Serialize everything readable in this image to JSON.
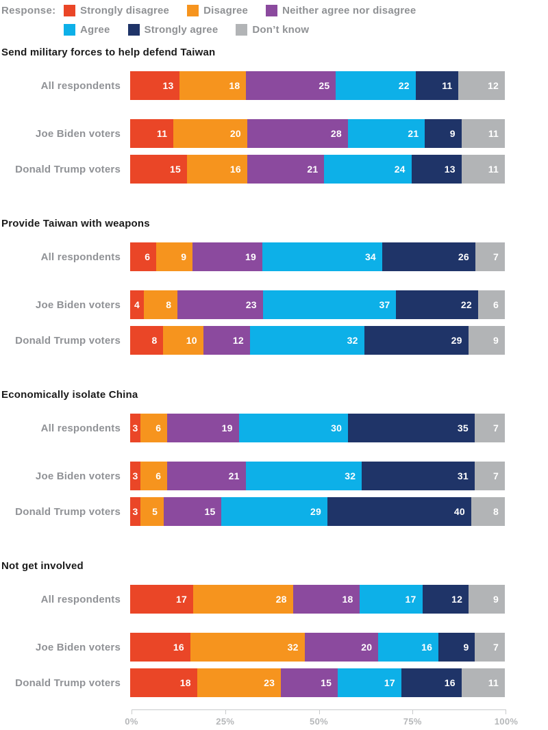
{
  "legend": {
    "prefix": "Response:",
    "items": [
      {
        "label": "Strongly disagree",
        "color": "#EA4627"
      },
      {
        "label": "Disagree",
        "color": "#F6941E"
      },
      {
        "label": "Neither agree nor disagree",
        "color": "#8B4A9E"
      },
      {
        "label": "Agree",
        "color": "#0DB0E8"
      },
      {
        "label": "Strongly agree",
        "color": "#1F3468"
      },
      {
        "label": "Don’t know",
        "color": "#B2B4B6"
      }
    ]
  },
  "chart_data": {
    "type": "bar",
    "variant": "horizontal-stacked",
    "unit": "percent",
    "response_options": [
      "Strongly disagree",
      "Disagree",
      "Neither agree nor disagree",
      "Agree",
      "Strongly agree",
      "Don’t know"
    ],
    "colors": [
      "#EA4627",
      "#F6941E",
      "#8B4A9E",
      "#0DB0E8",
      "#1F3468",
      "#B2B4B6"
    ],
    "categories": [
      "All respondents",
      "Joe Biden voters",
      "Donald Trump voters"
    ],
    "axis": {
      "range": [
        0,
        100
      ],
      "ticks": [
        "0%",
        "25%",
        "50%",
        "75%",
        "100%"
      ]
    },
    "sections": [
      {
        "title": "Send military forces to help defend Taiwan",
        "rows": [
          {
            "label": "All respondents",
            "values": [
              13,
              18,
              25,
              22,
              11,
              12
            ]
          },
          {
            "label": "Joe Biden voters",
            "values": [
              11,
              20,
              28,
              21,
              9,
              11
            ]
          },
          {
            "label": "Donald Trump voters",
            "values": [
              15,
              16,
              21,
              24,
              13,
              11
            ]
          }
        ]
      },
      {
        "title": "Provide Taiwan with weapons",
        "rows": [
          {
            "label": "All respondents",
            "values": [
              6,
              9,
              19,
              34,
              26,
              7
            ]
          },
          {
            "label": "Joe Biden voters",
            "values": [
              4,
              8,
              23,
              37,
              22,
              6
            ]
          },
          {
            "label": "Donald Trump voters",
            "values": [
              8,
              10,
              12,
              32,
              29,
              9
            ]
          }
        ]
      },
      {
        "title": "Economically isolate China",
        "rows": [
          {
            "label": "All respondents",
            "values": [
              3,
              6,
              19,
              30,
              35,
              7
            ]
          },
          {
            "label": "Joe Biden voters",
            "values": [
              3,
              6,
              21,
              32,
              31,
              7
            ]
          },
          {
            "label": "Donald Trump voters",
            "values": [
              3,
              5,
              15,
              29,
              40,
              8
            ]
          }
        ]
      },
      {
        "title": "Not get involved",
        "rows": [
          {
            "label": "All respondents",
            "values": [
              17,
              28,
              18,
              17,
              12,
              9
            ]
          },
          {
            "label": "Joe Biden voters",
            "values": [
              16,
              32,
              20,
              16,
              9,
              7
            ]
          },
          {
            "label": "Donald Trump voters",
            "values": [
              18,
              23,
              15,
              17,
              16,
              11
            ]
          }
        ]
      }
    ]
  }
}
